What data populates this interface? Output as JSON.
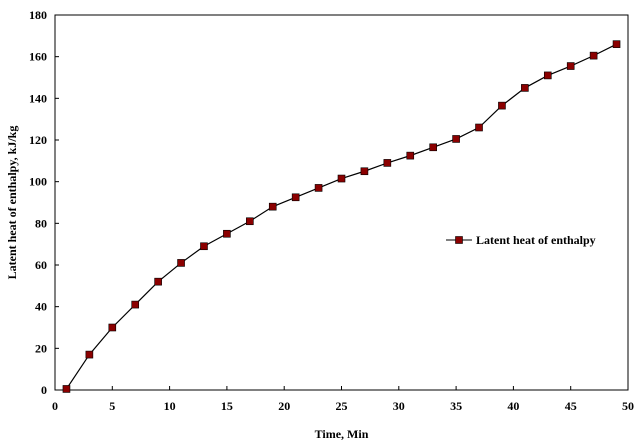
{
  "chart_data": {
    "type": "line",
    "title": "",
    "xlabel": "Time, Min",
    "ylabel": "Latent heat of enthalpy, kJ/kg",
    "xlim": [
      0,
      50
    ],
    "ylim": [
      0,
      180
    ],
    "x_ticks": [
      0,
      5,
      10,
      15,
      20,
      25,
      30,
      35,
      40,
      45,
      50
    ],
    "y_ticks": [
      0,
      20,
      40,
      60,
      80,
      100,
      120,
      140,
      160,
      180
    ],
    "grid": false,
    "legend_position": "right",
    "series": [
      {
        "name": "Latent heat of enthalpy",
        "color": "#8b0000",
        "line_color": "#000000",
        "marker": "square",
        "x": [
          1,
          3,
          5,
          7,
          9,
          11,
          13,
          15,
          17,
          19,
          21,
          23,
          25,
          27,
          29,
          31,
          33,
          35,
          37,
          39,
          41,
          43,
          45,
          47,
          49
        ],
        "y": [
          0.5,
          17,
          30,
          41,
          52,
          61,
          69,
          75,
          81,
          88,
          92.5,
          97,
          101.5,
          105,
          109,
          112.5,
          116.5,
          120.5,
          126,
          136.5,
          145,
          151,
          155.5,
          160.5,
          166
        ]
      }
    ]
  }
}
